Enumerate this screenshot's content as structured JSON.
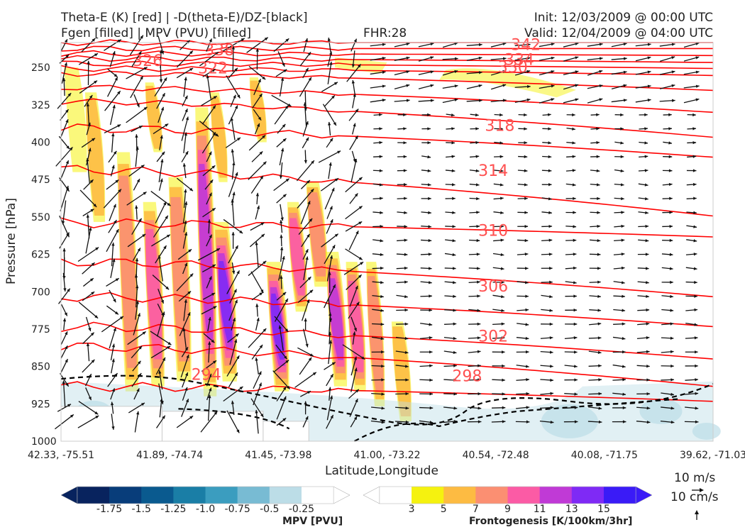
{
  "header": {
    "line1_left": "Theta-E (K) [red] | -D(theta-E)/DZ-[black]",
    "line2_left": "Fgen [filled] | MPV (PVU) [filled]",
    "fhr": "FHR:28",
    "init": "Init: 12/03/2009 @ 00:00 UTC",
    "valid": "Valid: 12/04/2009 @ 04:00 UTC"
  },
  "chart_data": {
    "type": "cross-section",
    "xlabel": "Latitude,Longitude",
    "ylabel": "Pressure [hPa]",
    "x_ticks": [
      "42.33, -75.51",
      "41.89, -74.74",
      "41.45, -73.98",
      "41.00, -73.22",
      "40.54, -72.48",
      "40.08, -71.75",
      "39.62, -71.03"
    ],
    "y_ticks": [
      250,
      325,
      400,
      475,
      550,
      625,
      700,
      775,
      850,
      925,
      1000
    ],
    "ylim": [
      1000,
      200
    ],
    "theta_e_labels": [
      {
        "value": "342",
        "x": 0.69,
        "p": 205
      },
      {
        "value": "338",
        "x": 0.22,
        "p": 216
      },
      {
        "value": "334",
        "x": 0.68,
        "p": 235
      },
      {
        "value": "330",
        "x": 0.67,
        "p": 250
      },
      {
        "value": "326",
        "x": 0.11,
        "p": 237
      },
      {
        "value": "322",
        "x": 0.21,
        "p": 252
      },
      {
        "value": "318",
        "x": 0.65,
        "p": 367
      },
      {
        "value": "314",
        "x": 0.64,
        "p": 458
      },
      {
        "value": "310",
        "x": 0.64,
        "p": 578
      },
      {
        "value": "306",
        "x": 0.64,
        "p": 690
      },
      {
        "value": "302",
        "x": 0.64,
        "p": 790
      },
      {
        "value": "298",
        "x": 0.6,
        "p": 870
      },
      {
        "value": "294",
        "x": 0.2,
        "p": 867
      }
    ],
    "mpv_colorbar": {
      "label": "MPV [PVU]",
      "ticks": [
        "-1.75",
        "-1.5",
        "-1.25",
        "-1.0",
        "-0.75",
        "-0.5",
        "-0.25"
      ],
      "colors": [
        "#08235e",
        "#083d7a",
        "#0a5a8f",
        "#1a7ea6",
        "#3b9dbf",
        "#78bbd3",
        "#bcdde7",
        "#ffffff"
      ]
    },
    "fgen_colorbar": {
      "label": "Frontogenesis [K/100km/3hr]",
      "ticks": [
        "3",
        "5",
        "7",
        "9",
        "11",
        "13",
        "15"
      ],
      "colors": [
        "#ffffff",
        "#f5f20f",
        "#fdbb42",
        "#fb8f72",
        "#fb5ba5",
        "#c03ad6",
        "#7f2af5",
        "#3a1bf7"
      ]
    },
    "vector_key": {
      "horizontal": "10 m/s",
      "vertical": "10 cm/s"
    }
  }
}
